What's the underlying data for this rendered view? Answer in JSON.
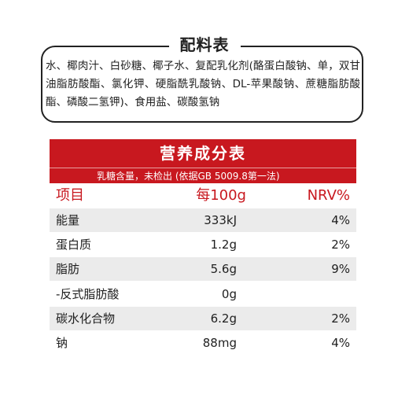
{
  "ingredients": {
    "title": "配料表",
    "text": "水、椰肉汁、白砂糖、椰子水、复配乳化剂(酪蛋白酸钠、单，双甘油脂肪酸酯、氯化钾、硬脂酰乳酸钠、DL-苹果酸钠、蔗糖脂肪酸酯、磷酸二氢钾)、食用盐、碳酸氢钠"
  },
  "nutrition": {
    "title": "营养成分表",
    "subtitle": "乳糖含量，未检出 (依据GB 5009.8第一法)",
    "headers": {
      "item": "项目",
      "per100g": "每100g",
      "nrv": "NRV%"
    },
    "rows": [
      {
        "name": "能量",
        "value": "333kJ",
        "nrv": "4%"
      },
      {
        "name": "蛋白质",
        "value": "1.2g",
        "nrv": "2%"
      },
      {
        "name": "脂肪",
        "value": "5.6g",
        "nrv": "9%"
      },
      {
        "name": "-反式脂肪酸",
        "value": "0g",
        "nrv": ""
      },
      {
        "name": "碳水化合物",
        "value": "6.2g",
        "nrv": "2%"
      },
      {
        "name": "钠",
        "value": "88mg",
        "nrv": "4%"
      }
    ]
  },
  "colors": {
    "accent": "#c8181f",
    "shade": "#ebebeb"
  }
}
